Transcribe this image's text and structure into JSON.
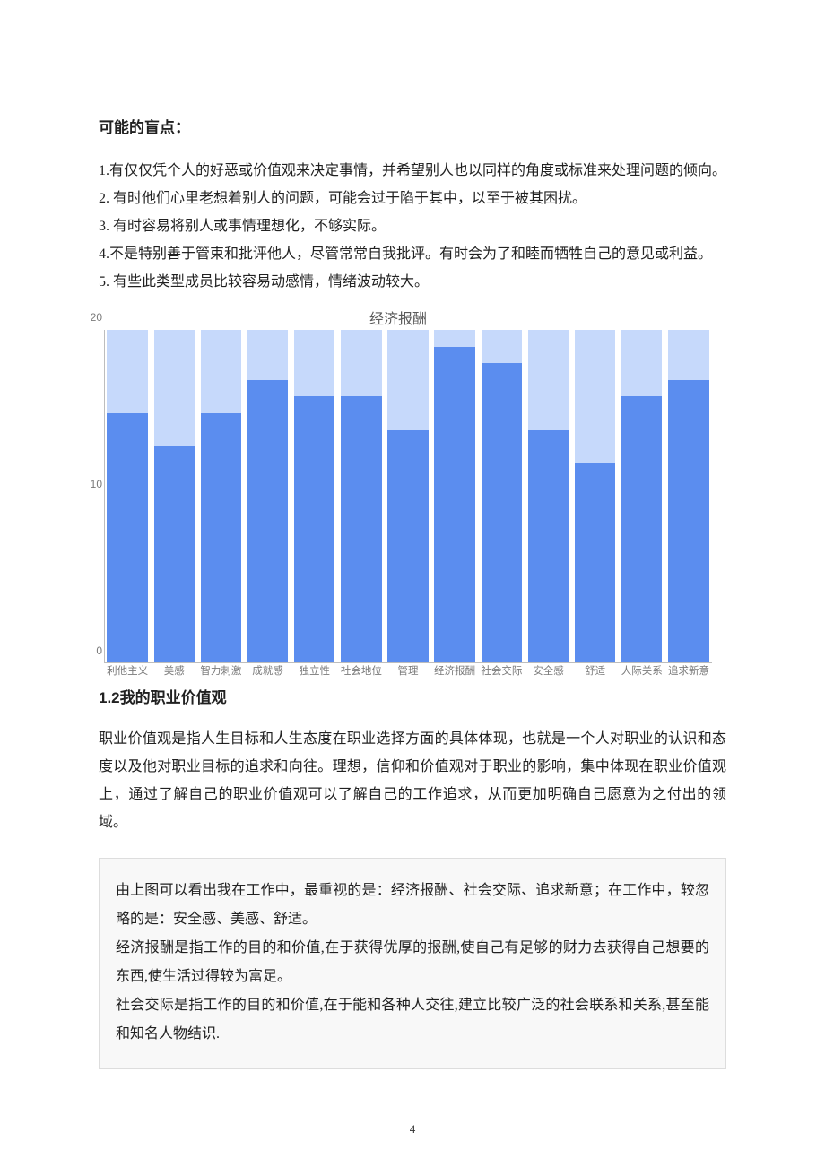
{
  "headings": {
    "blindspots": "可能的盲点：",
    "values_section": "1.2我的职业价值观"
  },
  "blindspots": [
    "1.有仅仅凭个人的好恶或价值观来决定事情，并希望别人也以同样的角度或标准来处理问题的倾向。",
    "2. 有时他们心里老想着别人的问题，可能会过于陷于其中，以至于被其困扰。",
    "3. 有时容易将别人或事情理想化，不够实际。",
    "4.不是特别善于管束和批评他人，尽管常常自我批评。有时会为了和睦而牺牲自己的意见或利益。",
    "5. 有些此类型成员比较容易动感情，情绪波动较大。"
  ],
  "chart": {
    "type": "stacked-bar",
    "title": "经济报酬",
    "ylim": [
      0,
      20
    ],
    "yticks": [
      0,
      10,
      20
    ],
    "axis_color": "#bdbdbd",
    "tick_font_color": "#7a7a7a",
    "tick_fontsize": 12,
    "label_fontsize": 11.5,
    "title_fontsize": 16,
    "title_color": "#5a5a5a",
    "bar_width_ratio": 0.87,
    "categories": [
      "利他主义",
      "美感",
      "智力刺激",
      "成就感",
      "独立性",
      "社会地位",
      "管理",
      "经济报酬",
      "社会交际",
      "安全感",
      "舒适",
      "人际关系",
      "追求新意"
    ],
    "stack_max": 20,
    "value_color": "#5b8def",
    "remainder_color": "#c6d9fb",
    "values": [
      15,
      13,
      15,
      17,
      16,
      16,
      14,
      19,
      18,
      14,
      12,
      16,
      17
    ]
  },
  "paragraphs": {
    "values_intro": "职业价值观是指人生目标和人生态度在职业选择方面的具体体现，也就是一个人对职业的认识和态度以及他对职业目标的追求和向往。理想，信仰和价值观对于职业的影响，集中体现在职业价值观上，通过了解自己的职业价值观可以了解自己的工作追求，从而更加明确自己愿意为之付出的领域。"
  },
  "box": [
    "由上图可以看出我在工作中，最重视的是：经济报酬、社会交际、追求新意；在工作中，较忽略的是：安全感、美感、舒适。",
    "经济报酬是指工作的目的和价值,在于获得优厚的报酬,使自己有足够的财力去获得自己想要的东西,使生活过得较为富足。",
    "社会交际是指工作的目的和价值,在于能和各种人交往,建立比较广泛的社会联系和关系,甚至能和知名人物结识."
  ],
  "page_number": "4"
}
